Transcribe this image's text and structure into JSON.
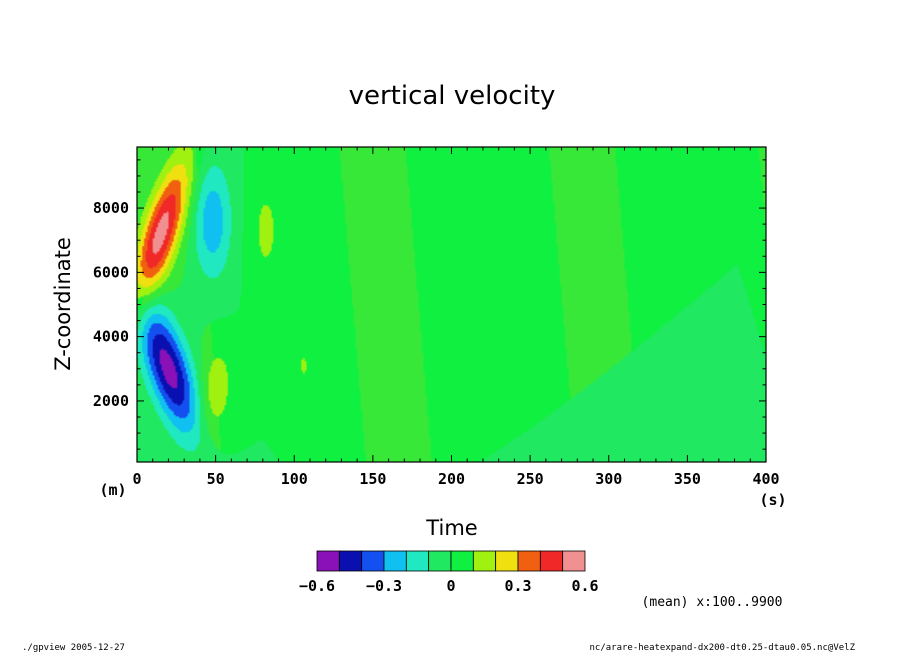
{
  "chart_data": {
    "type": "heatmap",
    "title": "vertical velocity",
    "xlabel": "Time",
    "ylabel": "Z-coordinate",
    "x_unit": "(s)",
    "y_unit": "(m)",
    "xlim": [
      0,
      400
    ],
    "ylim": [
      100,
      9900
    ],
    "x_ticks": [
      "0",
      "50",
      "100",
      "150",
      "200",
      "250",
      "300",
      "350",
      "400"
    ],
    "y_ticks": [
      "2000",
      "4000",
      "6000",
      "8000"
    ],
    "x_tick_values": [
      0,
      50,
      100,
      150,
      200,
      250,
      300,
      350,
      400
    ],
    "y_tick_values": [
      2000,
      4000,
      6000,
      8000
    ],
    "background_level": 0,
    "features": [
      {
        "name": "upper positive tilted cell",
        "t": 15,
        "z": 7200,
        "dt": 12,
        "dz": 2200,
        "tilt_t_per_km": 6,
        "peak": 0.55
      },
      {
        "name": "lower negative tilted cell",
        "t": 20,
        "z": 3000,
        "dt": 14,
        "dz": 2000,
        "tilt_t_per_km": -6,
        "peak": -0.55
      },
      {
        "name": "upper negative cell",
        "t": 48,
        "z": 7600,
        "dt": 12,
        "dz": 1800,
        "tilt_t_per_km": 0,
        "peak": -0.27
      },
      {
        "name": "lower positive cell",
        "t": 50,
        "z": 2300,
        "dt": 10,
        "dz": 1400,
        "tilt_t_per_km": 1.5,
        "peak": 0.18
      },
      {
        "name": "upper weak positive",
        "t": 82,
        "z": 7300,
        "dt": 11,
        "dz": 1900,
        "tilt_t_per_km": 0,
        "peak": 0.12
      },
      {
        "name": "small weak positive",
        "t": 106,
        "z": 3100,
        "dt": 3.5,
        "dz": 550,
        "tilt_t_per_km": 0,
        "peak": 0.12
      }
    ],
    "colorbar": {
      "levels": [
        -0.6,
        -0.5,
        -0.4,
        -0.3,
        -0.2,
        -0.1,
        0,
        0.1,
        0.2,
        0.3,
        0.4,
        0.5,
        0.6
      ],
      "colors": [
        "#8a10b8",
        "#0a10b0",
        "#1450f0",
        "#10c0f0",
        "#20e8c0",
        "#20e860",
        "#10f040",
        "#a0f010",
        "#f0e010",
        "#f06010",
        "#f02828",
        "#f09090"
      ],
      "tick_labels": [
        "-0.6",
        "-0.3",
        "0",
        "0.3",
        "0.6"
      ],
      "tick_values": [
        -0.6,
        -0.3,
        0,
        0.3,
        0.6
      ]
    },
    "background_shading": "#10f040",
    "secondary_shading": "#38e838"
  },
  "footer": {
    "left": "./gpview  2005-12-27",
    "right": "nc/arare-heatexpand-dx200-dt0.25-dtau0.05.nc@VelZ",
    "mean_note": "(mean) x:100..9900"
  }
}
